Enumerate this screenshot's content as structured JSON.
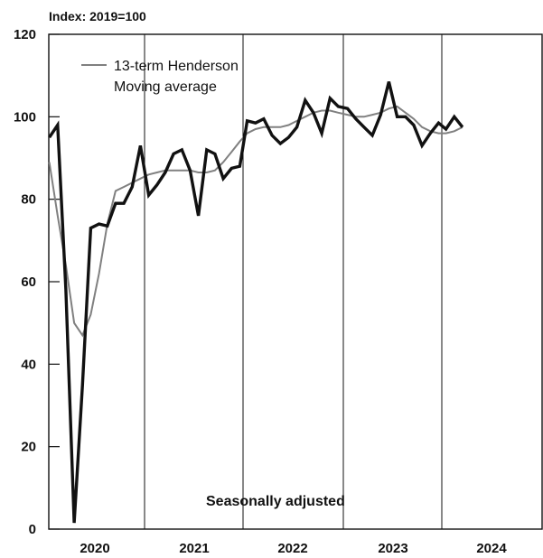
{
  "chart_data": {
    "type": "line",
    "y_unit_label": "Index:  2019=100",
    "ylim": [
      0,
      120
    ],
    "y_ticks": [
      "0",
      "20",
      "40",
      "60",
      "80",
      "100",
      "120"
    ],
    "x_categories": [
      "2020",
      "2021",
      "2022",
      "2023",
      "2024"
    ],
    "annotation": "Seasonally adjusted",
    "legend": {
      "line1": "13-term Henderson",
      "line2": "Moving average"
    },
    "series": [
      {
        "role": "index",
        "color": "#111111",
        "months": [
          "2020-01",
          "2020-02",
          "2020-03",
          "2020-04",
          "2020-05",
          "2020-06",
          "2020-07",
          "2020-08",
          "2020-09",
          "2020-10",
          "2020-11",
          "2020-12",
          "2021-01",
          "2021-02",
          "2021-03",
          "2021-04",
          "2021-05",
          "2021-06",
          "2021-07",
          "2021-08",
          "2021-09",
          "2021-10",
          "2021-11",
          "2021-12",
          "2022-01",
          "2022-02",
          "2022-03",
          "2022-04",
          "2022-05",
          "2022-06",
          "2022-07",
          "2022-08",
          "2022-09",
          "2022-10",
          "2022-11",
          "2022-12",
          "2023-01",
          "2023-02",
          "2023-03",
          "2023-04",
          "2023-05",
          "2023-06",
          "2023-07",
          "2023-08",
          "2023-09",
          "2023-10",
          "2023-11",
          "2023-12",
          "2024-01",
          "2024-02",
          "2024-03"
        ],
        "values": [
          95,
          98,
          58,
          1.5,
          35,
          73,
          74,
          73.5,
          79,
          79,
          83,
          93,
          81,
          83.5,
          86.5,
          91,
          92,
          87,
          76,
          92,
          91,
          85,
          87.5,
          88,
          99,
          98.5,
          99.5,
          95.5,
          93.5,
          95,
          97.5,
          104,
          101,
          96,
          104.5,
          102.5,
          102,
          99.5,
          97.5,
          95.5,
          100.5,
          108.5,
          100,
          100,
          98,
          93,
          96,
          98.5,
          97,
          100,
          97.5
        ]
      },
      {
        "role": "henderson",
        "color": "#808080",
        "months": [
          "2020-01",
          "2020-02",
          "2020-03",
          "2020-04",
          "2020-05",
          "2020-06",
          "2020-07",
          "2020-08",
          "2020-09",
          "2020-10",
          "2020-11",
          "2020-12",
          "2021-01",
          "2021-02",
          "2021-03",
          "2021-04",
          "2021-05",
          "2021-06",
          "2021-07",
          "2021-08",
          "2021-09",
          "2021-10",
          "2021-11",
          "2021-12",
          "2022-01",
          "2022-02",
          "2022-03",
          "2022-04",
          "2022-05",
          "2022-06",
          "2022-07",
          "2022-08",
          "2022-09",
          "2022-10",
          "2022-11",
          "2022-12",
          "2023-01",
          "2023-02",
          "2023-03",
          "2023-04",
          "2023-05",
          "2023-06",
          "2023-07",
          "2023-08",
          "2023-09",
          "2023-10",
          "2023-11",
          "2023-12",
          "2024-01",
          "2024-02",
          "2024-03"
        ],
        "values": [
          89,
          76,
          64,
          50,
          47,
          52,
          62,
          74,
          82,
          83,
          84,
          85,
          86,
          86.5,
          87,
          87,
          87,
          87,
          86.5,
          86.5,
          87,
          89,
          91.5,
          94,
          96,
          97,
          97.5,
          97.5,
          97.5,
          98,
          99,
          100,
          101,
          101.5,
          101.5,
          101,
          100.5,
          100,
          100,
          100.5,
          101,
          102,
          102.5,
          101,
          99.5,
          97.5,
          96.5,
          96,
          96,
          96.5,
          97.5
        ]
      }
    ]
  }
}
